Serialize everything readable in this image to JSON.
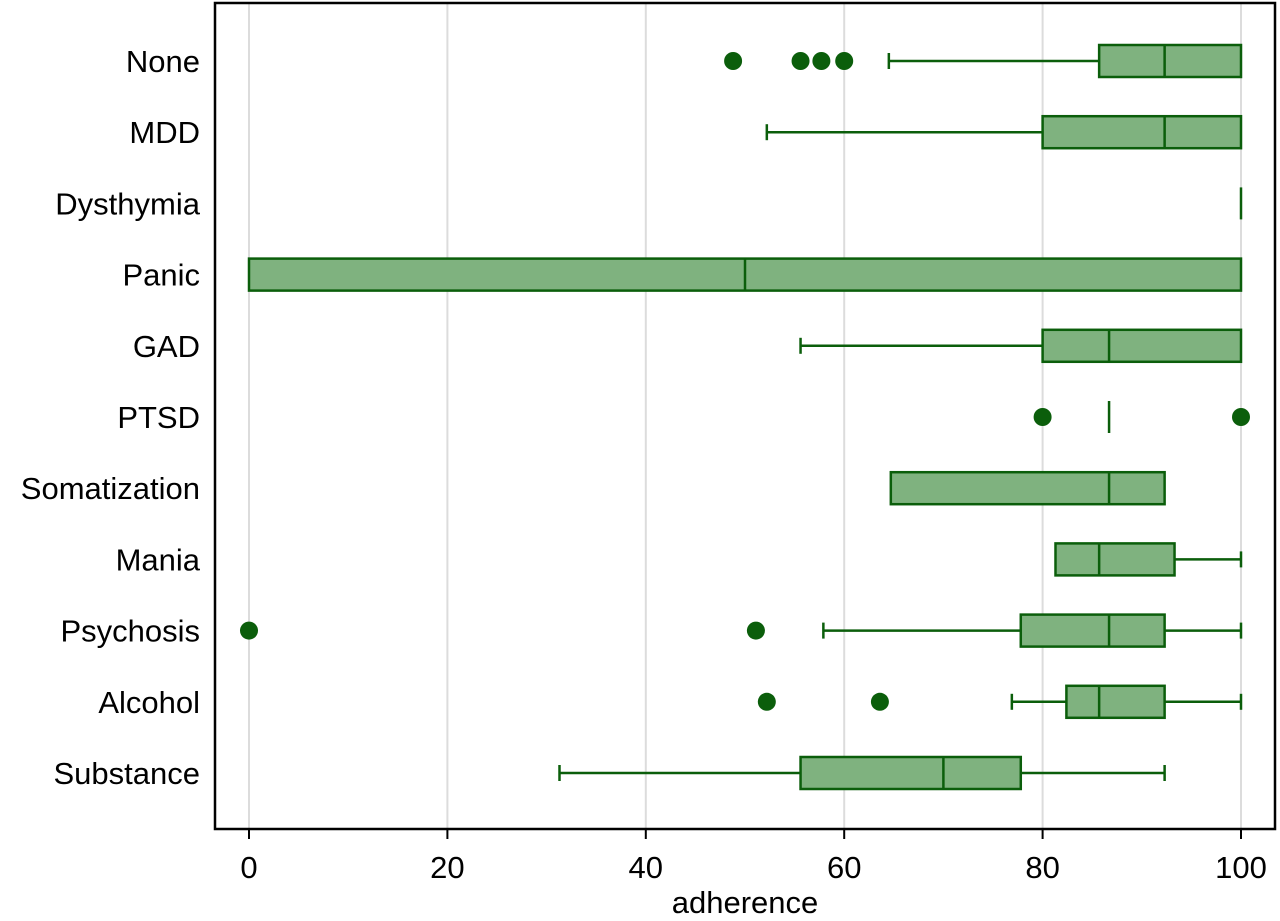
{
  "chart_data": {
    "type": "boxplot",
    "orientation": "horizontal",
    "title": "",
    "xlabel": "adherence",
    "ylabel": "",
    "xlim": [
      0,
      100
    ],
    "xticks": [
      0,
      20,
      40,
      60,
      80,
      100
    ],
    "grid": "vertical",
    "colors": {
      "box_fill": "#7fb27f",
      "box_stroke": "#0b5e0b",
      "outlier": "#0b5e0b",
      "grid": "#dcdcdc",
      "frame": "#000000"
    },
    "categories": [
      "None",
      "MDD",
      "Dysthymia",
      "Panic",
      "GAD",
      "PTSD",
      "Somatization",
      "Mania",
      "Psychosis",
      "Alcohol",
      "Substance"
    ],
    "boxes": [
      {
        "category": "None",
        "whisker_low": 64.5,
        "q1": 85.7,
        "median": 92.3,
        "q3": 100,
        "whisker_high": 100,
        "outliers": [
          48.8,
          55.6,
          57.7,
          60
        ]
      },
      {
        "category": "MDD",
        "whisker_low": 52.2,
        "q1": 80,
        "median": 92.3,
        "q3": 100,
        "whisker_high": 100,
        "outliers": []
      },
      {
        "category": "Dysthymia",
        "whisker_low": 100,
        "q1": 100,
        "median": 100,
        "q3": 100,
        "whisker_high": 100,
        "outliers": []
      },
      {
        "category": "Panic",
        "whisker_low": 0,
        "q1": 0,
        "median": 50,
        "q3": 100,
        "whisker_high": 100,
        "outliers": []
      },
      {
        "category": "GAD",
        "whisker_low": 55.6,
        "q1": 80,
        "median": 86.7,
        "q3": 100,
        "whisker_high": 100,
        "outliers": []
      },
      {
        "category": "PTSD",
        "whisker_low": 86.7,
        "q1": 86.7,
        "median": 86.7,
        "q3": 86.7,
        "whisker_high": 86.7,
        "outliers": [
          80,
          100
        ]
      },
      {
        "category": "Somatization",
        "whisker_low": 64.7,
        "q1": 64.7,
        "median": 86.7,
        "q3": 92.3,
        "whisker_high": 92.3,
        "outliers": []
      },
      {
        "category": "Mania",
        "whisker_low": 81.3,
        "q1": 81.3,
        "median": 85.7,
        "q3": 93.3,
        "whisker_high": 100,
        "outliers": []
      },
      {
        "category": "Psychosis",
        "whisker_low": 57.9,
        "q1": 77.8,
        "median": 86.7,
        "q3": 92.3,
        "whisker_high": 100,
        "outliers": [
          0,
          51.1
        ]
      },
      {
        "category": "Alcohol",
        "whisker_low": 76.9,
        "q1": 82.4,
        "median": 85.7,
        "q3": 92.3,
        "whisker_high": 100,
        "outliers": [
          52.2,
          63.6
        ]
      },
      {
        "category": "Substance",
        "whisker_low": 31.3,
        "q1": 55.6,
        "median": 70,
        "q3": 77.8,
        "whisker_high": 92.3,
        "outliers": []
      }
    ]
  }
}
